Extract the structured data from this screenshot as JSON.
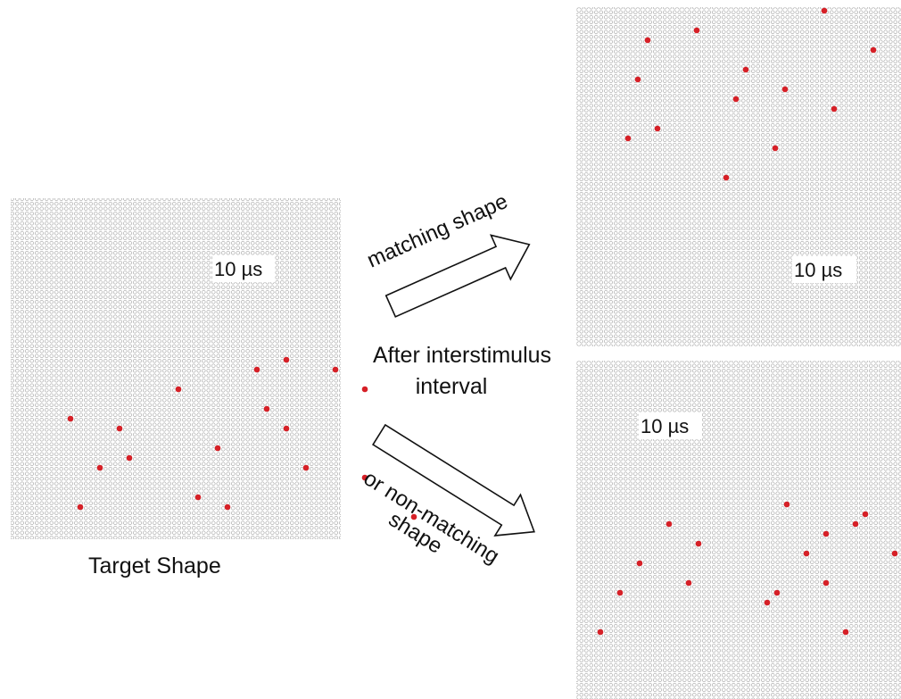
{
  "labels": {
    "target_shape": "Target Shape",
    "after_interval_line1": "After interstimulus",
    "after_interval_line2": "interval",
    "matching_shape": "matching shape",
    "non_matching_line1": "or non-matching",
    "non_matching_line2": "shape"
  },
  "panels": [
    {
      "id": "target",
      "time_label": "10 µs",
      "dot_color": "#d62027",
      "active_cells": [
        [
          0,
          28
        ],
        [
          1,
          25
        ],
        [
          1,
          33
        ],
        [
          3,
          17
        ],
        [
          3,
          36
        ],
        [
          5,
          26
        ],
        [
          6,
          6
        ],
        [
          7,
          11
        ],
        [
          7,
          28
        ],
        [
          9,
          21
        ],
        [
          10,
          12
        ],
        [
          10,
          41
        ],
        [
          11,
          9
        ],
        [
          11,
          30
        ],
        [
          12,
          36
        ],
        [
          14,
          19
        ],
        [
          15,
          7
        ],
        [
          15,
          22
        ],
        [
          16,
          41
        ]
      ]
    },
    {
      "id": "matching",
      "time_label": "10 µs",
      "dot_color": "#d62027",
      "active_cells": [
        [
          0,
          25
        ],
        [
          2,
          12
        ],
        [
          3,
          7
        ],
        [
          4,
          30
        ],
        [
          6,
          17
        ],
        [
          6,
          44
        ],
        [
          7,
          6
        ],
        [
          8,
          21
        ],
        [
          8,
          42
        ],
        [
          9,
          16
        ],
        [
          9,
          34
        ],
        [
          10,
          26
        ],
        [
          12,
          8
        ],
        [
          12,
          38
        ],
        [
          13,
          5
        ],
        [
          13,
          36
        ],
        [
          14,
          20
        ],
        [
          16,
          40
        ],
        [
          17,
          15
        ]
      ]
    },
    {
      "id": "non-matching",
      "time_label": "10 µs",
      "dot_color": "#d62027",
      "active_cells": [
        [
          6,
          21
        ],
        [
          7,
          29
        ],
        [
          8,
          9
        ],
        [
          8,
          28
        ],
        [
          9,
          25
        ],
        [
          10,
          12
        ],
        [
          11,
          23
        ],
        [
          11,
          32
        ],
        [
          12,
          6
        ],
        [
          13,
          37
        ],
        [
          14,
          11
        ],
        [
          14,
          25
        ],
        [
          15,
          4
        ],
        [
          15,
          20
        ],
        [
          16,
          19
        ],
        [
          17,
          34
        ],
        [
          19,
          2
        ],
        [
          19,
          27
        ],
        [
          20,
          41
        ]
      ]
    }
  ]
}
